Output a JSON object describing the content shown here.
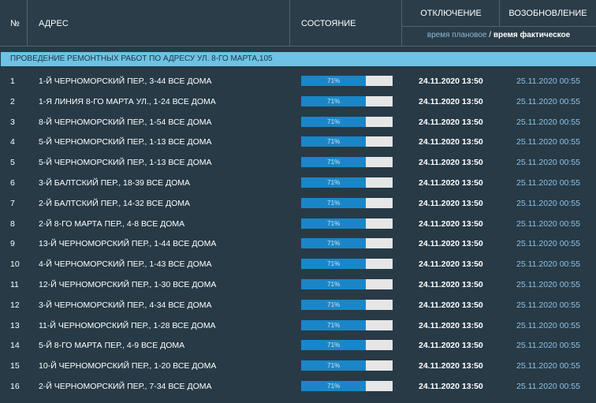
{
  "header": {
    "num": "№",
    "address": "Адрес",
    "state": "Состояние",
    "off": "Отключение",
    "on": "Возобновление",
    "legend_planned": "время плановое",
    "legend_sep": " / ",
    "legend_actual": "время фактическое"
  },
  "group": {
    "title": "Проведение ремонтных работ по адресу ул. 8-го Марта,105"
  },
  "colors": {
    "bar_fill": "#1a86c7",
    "bar_track": "#e6e6e6",
    "group_band": "#6ec2e3",
    "background": "#273a46"
  },
  "rows": [
    {
      "n": "1",
      "addr": "1-Й ЧЕРНОМОРСКИЙ ПЕР., 3-44 ВСЕ ДОМА",
      "pct": "71%",
      "progress": 0.71,
      "off": "24.11.2020 13:50",
      "on": "25.11.2020 00:55"
    },
    {
      "n": "2",
      "addr": "1-Я ЛИНИЯ 8-ГО МАРТА УЛ., 1-24 ВСЕ ДОМА",
      "pct": "71%",
      "progress": 0.71,
      "off": "24.11.2020 13:50",
      "on": "25.11.2020 00:55"
    },
    {
      "n": "3",
      "addr": "8-Й ЧЕРНОМОРСКИЙ ПЕР., 1-54 ВСЕ ДОМА",
      "pct": "71%",
      "progress": 0.71,
      "off": "24.11.2020 13:50",
      "on": "25.11.2020 00:55"
    },
    {
      "n": "4",
      "addr": "5-Й ЧЕРНОМОРСКИЙ ПЕР., 1-13 ВСЕ ДОМА",
      "pct": "71%",
      "progress": 0.71,
      "off": "24.11.2020 13:50",
      "on": "25.11.2020 00:55"
    },
    {
      "n": "5",
      "addr": "5-Й ЧЕРНОМОРСКИЙ ПЕР., 1-13 ВСЕ ДОМА",
      "pct": "71%",
      "progress": 0.71,
      "off": "24.11.2020 13:50",
      "on": "25.11.2020 00:55"
    },
    {
      "n": "6",
      "addr": "3-Й БАЛТСКИЙ ПЕР., 18-39 ВСЕ ДОМА",
      "pct": "71%",
      "progress": 0.71,
      "off": "24.11.2020 13:50",
      "on": "25.11.2020 00:55"
    },
    {
      "n": "7",
      "addr": "2-Й БАЛТСКИЙ ПЕР., 14-32 ВСЕ ДОМА",
      "pct": "71%",
      "progress": 0.71,
      "off": "24.11.2020 13:50",
      "on": "25.11.2020 00:55"
    },
    {
      "n": "8",
      "addr": "2-Й 8-ГО МАРТА ПЕР., 4-8 ВСЕ ДОМА",
      "pct": "71%",
      "progress": 0.71,
      "off": "24.11.2020 13:50",
      "on": "25.11.2020 00:55"
    },
    {
      "n": "9",
      "addr": "13-Й ЧЕРНОМОРСКИЙ ПЕР., 1-44 ВСЕ ДОМА",
      "pct": "71%",
      "progress": 0.71,
      "off": "24.11.2020 13:50",
      "on": "25.11.2020 00:55"
    },
    {
      "n": "10",
      "addr": "4-Й ЧЕРНОМОРСКИЙ ПЕР., 1-43 ВСЕ ДОМА",
      "pct": "71%",
      "progress": 0.71,
      "off": "24.11.2020 13:50",
      "on": "25.11.2020 00:55"
    },
    {
      "n": "11",
      "addr": "12-Й ЧЕРНОМОРСКИЙ ПЕР., 1-30 ВСЕ ДОМА",
      "pct": "71%",
      "progress": 0.71,
      "off": "24.11.2020 13:50",
      "on": "25.11.2020 00:55"
    },
    {
      "n": "12",
      "addr": "3-Й ЧЕРНОМОРСКИЙ ПЕР., 4-34 ВСЕ ДОМА",
      "pct": "71%",
      "progress": 0.71,
      "off": "24.11.2020 13:50",
      "on": "25.11.2020 00:55"
    },
    {
      "n": "13",
      "addr": "11-Й ЧЕРНОМОРСКИЙ ПЕР., 1-28 ВСЕ ДОМА",
      "pct": "71%",
      "progress": 0.71,
      "off": "24.11.2020 13:50",
      "on": "25.11.2020 00:55"
    },
    {
      "n": "14",
      "addr": "5-Й 8-ГО МАРТА ПЕР., 4-9 ВСЕ ДОМА",
      "pct": "71%",
      "progress": 0.71,
      "off": "24.11.2020 13:50",
      "on": "25.11.2020 00:55"
    },
    {
      "n": "15",
      "addr": "10-Й ЧЕРНОМОРСКИЙ ПЕР., 1-20 ВСЕ ДОМА",
      "pct": "71%",
      "progress": 0.71,
      "off": "24.11.2020 13:50",
      "on": "25.11.2020 00:55"
    },
    {
      "n": "16",
      "addr": "2-Й ЧЕРНОМОРСКИЙ ПЕР., 7-34 ВСЕ ДОМА",
      "pct": "71%",
      "progress": 0.71,
      "off": "24.11.2020 13:50",
      "on": "25.11.2020 00:55"
    }
  ]
}
